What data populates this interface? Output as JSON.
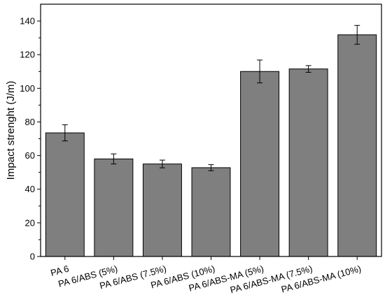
{
  "chart_data": {
    "type": "bar",
    "title": "",
    "xlabel": "",
    "ylabel": "Impact strenght (J/m)",
    "ylim": [
      0,
      150
    ],
    "yticks": [
      0,
      20,
      40,
      60,
      80,
      100,
      120,
      140
    ],
    "grid": false,
    "legend": "none",
    "bar_color": "#7f7f7f",
    "categories": [
      "PA 6",
      "PA 6/ABS (5%)",
      "PA 6/ABS (7.5%)",
      "PA 6/ABS (10%)",
      "PA 6/ABS-MA (5%)",
      "PA 6/ABS-MA (7.5%)",
      "PA 6/ABS-MA (10%)"
    ],
    "values": [
      73.5,
      58,
      55,
      52.8,
      110,
      111.5,
      131.8
    ],
    "errors": [
      4.8,
      3,
      2.3,
      1.8,
      6.8,
      2,
      5.6
    ]
  }
}
